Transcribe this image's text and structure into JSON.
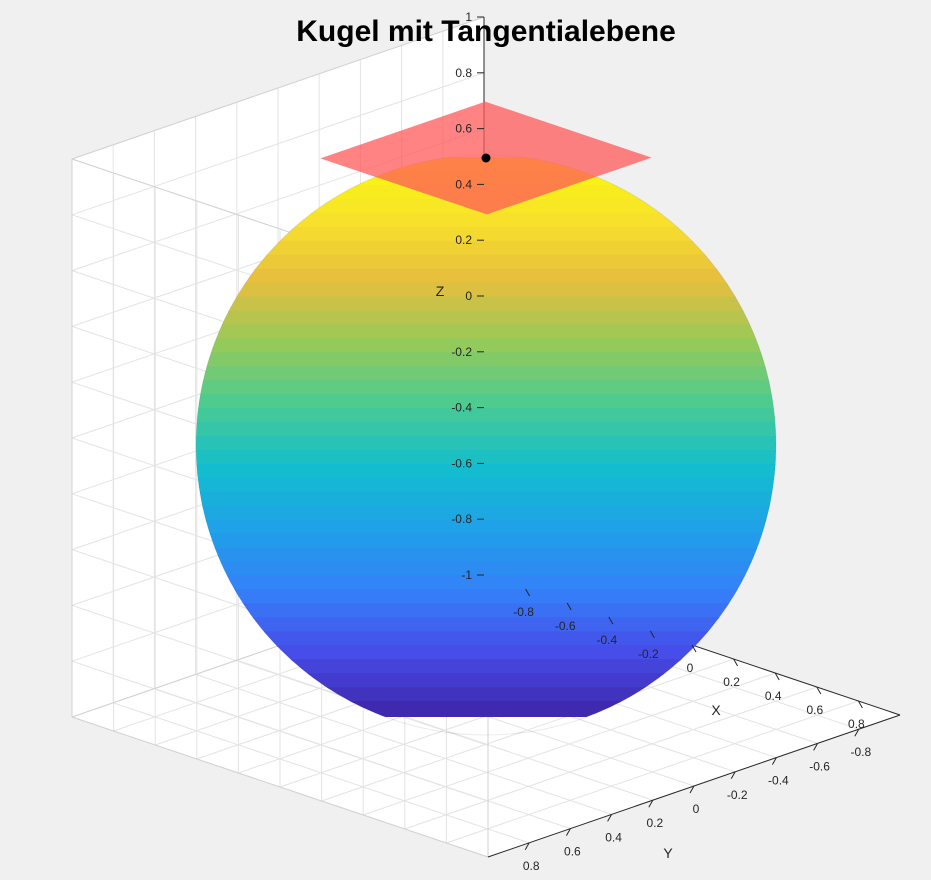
{
  "chart_data": {
    "type": "surface3d",
    "title": "Kugel mit Tangentialebene",
    "xlabel": "X",
    "ylabel": "Y",
    "zlabel": "Z",
    "xlim": [
      -1,
      1
    ],
    "ylim": [
      -1,
      1
    ],
    "zlim": [
      -1,
      1
    ],
    "x_ticks": [
      "-0.8",
      "-0.6",
      "-0.4",
      "-0.2",
      "0",
      "0.2",
      "0.4",
      "0.6",
      "0.8"
    ],
    "y_ticks": [
      "0.8",
      "0.6",
      "0.4",
      "0.2",
      "0",
      "-0.2",
      "-0.4",
      "-0.6",
      "-0.8"
    ],
    "z_ticks": [
      "1",
      "0.8",
      "0.6",
      "0.4",
      "0.2",
      "0",
      "-0.2",
      "-0.4",
      "-0.6",
      "-0.8",
      "-1"
    ],
    "grid": true,
    "colormap": "parula",
    "series": [
      {
        "type": "surface",
        "shape": "sphere",
        "center": [
          0,
          0,
          0
        ],
        "radius": 1
      },
      {
        "type": "plane",
        "tangent_point": [
          0,
          0,
          1
        ],
        "half_width": 0.4,
        "color": "#ff5a5a",
        "alpha": 0.75
      },
      {
        "type": "point",
        "coords": [
          0,
          0,
          1
        ],
        "color": "#000000"
      }
    ]
  }
}
